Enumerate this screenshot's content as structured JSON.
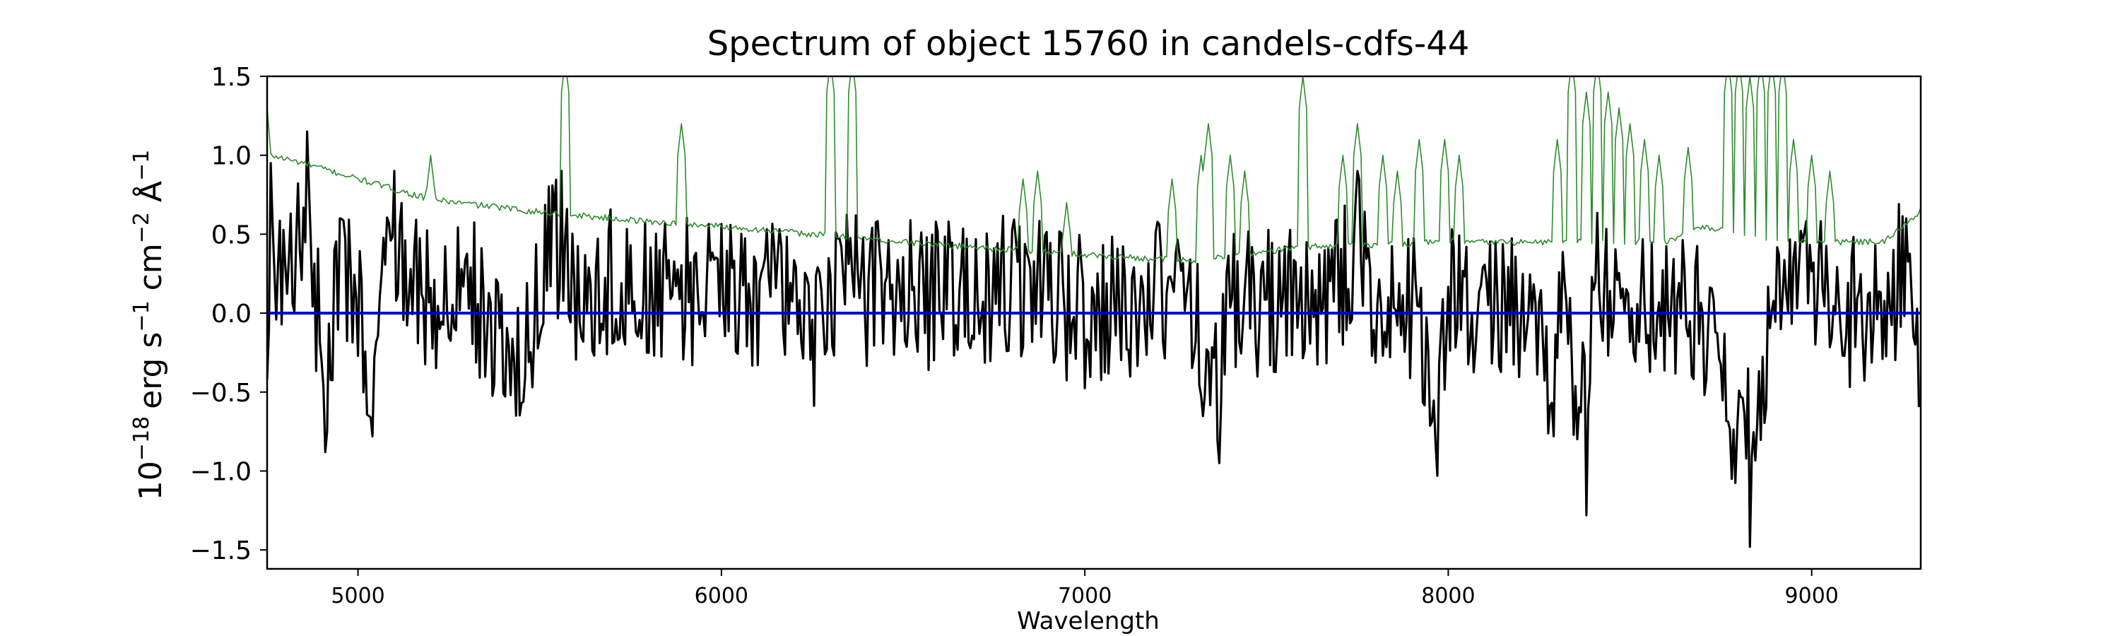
{
  "chart_data": {
    "type": "line",
    "title": "Spectrum of object 15760 in candels-cdfs-44",
    "xlabel": "Wavelength",
    "ylabel_parts": {
      "base": "10",
      "exp": "−18",
      "units": [
        "erg s",
        "−1",
        " cm",
        "−2",
        " Å",
        "−1"
      ]
    },
    "xlim": [
      4750,
      9300
    ],
    "ylim": [
      -1.62,
      1.5
    ],
    "x_ticks": [
      5000,
      6000,
      7000,
      8000,
      9000
    ],
    "x_tick_labels": [
      "5000",
      "6000",
      "7000",
      "8000",
      "9000"
    ],
    "y_ticks": [
      1.5,
      1.0,
      0.5,
      0.0,
      -0.5,
      -1.0,
      -1.5
    ],
    "y_tick_labels": [
      "1.5",
      "1.0",
      "0.5",
      "0.0",
      "−0.5",
      "−1.0",
      "−1.5"
    ],
    "grid": false,
    "series": [
      {
        "role": "flux",
        "color": "#000000",
        "sampling": {
          "x_start": 4750,
          "x_step": 5
        },
        "seed": 20260415,
        "noise_amplitude": 0.22,
        "anchors": [
          [
            4750,
            -0.25
          ],
          [
            4760,
            0.95
          ],
          [
            4800,
            0.15
          ],
          [
            4860,
            1.15
          ],
          [
            4910,
            -0.88
          ],
          [
            4950,
            0.6
          ],
          [
            5000,
            0.1
          ],
          [
            5040,
            -0.78
          ],
          [
            5100,
            0.9
          ],
          [
            5200,
            0.1
          ],
          [
            5300,
            0.3
          ],
          [
            5450,
            -0.57
          ],
          [
            5500,
            0.4
          ],
          [
            5560,
            0.9
          ],
          [
            5600,
            0.3
          ],
          [
            5700,
            0.4
          ],
          [
            5800,
            0.2
          ],
          [
            5850,
            0.3
          ],
          [
            5900,
            0.25
          ],
          [
            6000,
            0.2
          ],
          [
            6200,
            0.2
          ],
          [
            6250,
            -0.43
          ],
          [
            6300,
            0.3
          ],
          [
            6500,
            0.2
          ],
          [
            6600,
            0.2
          ],
          [
            6700,
            0.1
          ],
          [
            6800,
            0.3
          ],
          [
            6900,
            0.2
          ],
          [
            7000,
            0.0
          ],
          [
            7100,
            0.1
          ],
          [
            7200,
            0.2
          ],
          [
            7250,
            0.3
          ],
          [
            7300,
            0.0
          ],
          [
            7370,
            -0.95
          ],
          [
            7400,
            0.2
          ],
          [
            7500,
            0.1
          ],
          [
            7600,
            0.3
          ],
          [
            7700,
            0.2
          ],
          [
            7750,
            0.9
          ],
          [
            7800,
            0.2
          ],
          [
            7900,
            0.1
          ],
          [
            7970,
            -1.03
          ],
          [
            8000,
            0.2
          ],
          [
            8100,
            0.1
          ],
          [
            8200,
            0.0
          ],
          [
            8290,
            -0.78
          ],
          [
            8300,
            0.2
          ],
          [
            8380,
            -1.28
          ],
          [
            8400,
            0.3
          ],
          [
            8500,
            0.1
          ],
          [
            8600,
            0.2
          ],
          [
            8700,
            0.0
          ],
          [
            8780,
            -1.05
          ],
          [
            8830,
            -1.48
          ],
          [
            8900,
            0.3
          ],
          [
            8950,
            0.1
          ],
          [
            9000,
            0.3
          ],
          [
            9100,
            0.0
          ],
          [
            9200,
            0.0
          ],
          [
            9260,
            0.6
          ],
          [
            9300,
            -0.55
          ]
        ]
      },
      {
        "role": "error",
        "color": "#2e8b2e",
        "sampling": {
          "x_start": 4750,
          "x_step": 5
        },
        "seed": 777,
        "noise_amplitude": 0.02,
        "baseline": [
          [
            4750,
            1.3
          ],
          [
            4760,
            1.0
          ],
          [
            4850,
            0.95
          ],
          [
            5000,
            0.85
          ],
          [
            5200,
            0.72
          ],
          [
            5500,
            0.64
          ],
          [
            5800,
            0.58
          ],
          [
            6000,
            0.55
          ],
          [
            6500,
            0.45
          ],
          [
            7000,
            0.37
          ],
          [
            7300,
            0.33
          ],
          [
            7600,
            0.42
          ],
          [
            8000,
            0.45
          ],
          [
            8300,
            0.45
          ],
          [
            8600,
            0.45
          ],
          [
            8700,
            0.55
          ],
          [
            8800,
            0.5
          ],
          [
            9000,
            0.45
          ],
          [
            9200,
            0.45
          ],
          [
            9300,
            0.65
          ]
        ],
        "spikes": [
          [
            5200,
            1.0
          ],
          [
            5570,
            1.6
          ],
          [
            5890,
            1.2
          ],
          [
            6300,
            1.6
          ],
          [
            6360,
            1.6
          ],
          [
            6830,
            0.85
          ],
          [
            6870,
            0.9
          ],
          [
            6950,
            0.7
          ],
          [
            7240,
            0.85
          ],
          [
            7320,
            1.0
          ],
          [
            7340,
            1.2
          ],
          [
            7400,
            1.0
          ],
          [
            7440,
            0.9
          ],
          [
            7600,
            1.5
          ],
          [
            7710,
            1.0
          ],
          [
            7750,
            1.2
          ],
          [
            7820,
            1.0
          ],
          [
            7860,
            0.9
          ],
          [
            7920,
            1.1
          ],
          [
            7990,
            1.1
          ],
          [
            8030,
            1.0
          ],
          [
            8300,
            1.1
          ],
          [
            8340,
            1.6
          ],
          [
            8380,
            1.4
          ],
          [
            8410,
            1.6
          ],
          [
            8440,
            1.4
          ],
          [
            8470,
            1.3
          ],
          [
            8500,
            1.2
          ],
          [
            8540,
            1.1
          ],
          [
            8580,
            1.0
          ],
          [
            8660,
            1.05
          ],
          [
            8770,
            1.6
          ],
          [
            8800,
            1.6
          ],
          [
            8830,
            1.5
          ],
          [
            8860,
            1.6
          ],
          [
            8890,
            1.6
          ],
          [
            8920,
            1.6
          ],
          [
            8950,
            1.1
          ],
          [
            9000,
            1.0
          ],
          [
            9050,
            0.9
          ]
        ]
      },
      {
        "role": "zero-line",
        "color": "#0000cc",
        "constant": 0.0
      }
    ]
  }
}
